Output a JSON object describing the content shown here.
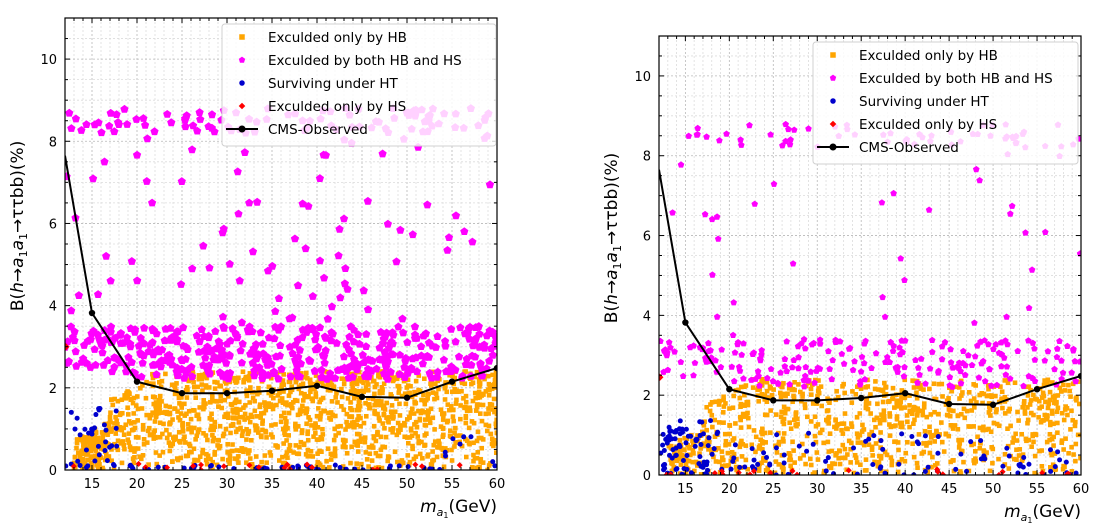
{
  "chart_data": [
    {
      "type": "scatter",
      "title": "",
      "xlabel": "m_{a_1}(GeV)",
      "ylabel": "B(h→a_1a_1→ττbb)(%)",
      "xlim": [
        12,
        60
      ],
      "ylim": [
        0,
        11
      ],
      "x_ticks": [
        15,
        20,
        25,
        30,
        35,
        40,
        45,
        50,
        55,
        60
      ],
      "y_ticks": [
        0,
        2,
        4,
        6,
        8,
        10
      ],
      "grid": true,
      "legend_position": "top-right",
      "series": [
        {
          "name": "Exculded only by HB",
          "marker": "square",
          "color": "#FFA500",
          "band_y": [
            0,
            2.4
          ],
          "approx_points": 1400
        },
        {
          "name": "Exculded by both HB and HS",
          "marker": "pentagon",
          "color": "#FF00FF",
          "band_y": [
            2.2,
            3.5
          ],
          "approx_points": 600
        },
        {
          "name": "Surviving under HT",
          "marker": "circle",
          "color": "#0000CD",
          "band_y": [
            0,
            1.5
          ],
          "approx_points": 90
        },
        {
          "name": "Exculded only by HS",
          "marker": "diamond",
          "color": "#FF0000",
          "band_y": [
            0,
            0.3
          ],
          "approx_points": 20
        },
        {
          "name": "CMS-Observed",
          "marker": "line-dot",
          "color": "#000000",
          "x": [
            12,
            15,
            20,
            25,
            30,
            35,
            40,
            45,
            50,
            55,
            60
          ],
          "y": [
            7.65,
            3.82,
            2.15,
            1.87,
            1.87,
            1.93,
            2.05,
            1.78,
            1.76,
            2.15,
            2.48
          ]
        }
      ]
    },
    {
      "type": "scatter",
      "title": "",
      "xlabel": "m_{a_1}(GeV)",
      "ylabel": "B(h→a_1a_1→ττbb)(%)",
      "xlim": [
        12,
        60
      ],
      "ylim": [
        0,
        11
      ],
      "x_ticks": [
        15,
        20,
        25,
        30,
        35,
        40,
        45,
        50,
        55,
        60
      ],
      "y_ticks": [
        0,
        2,
        4,
        6,
        8,
        10
      ],
      "grid": true,
      "legend_position": "top-right",
      "series": [
        {
          "name": "Exculded only by HB",
          "marker": "square",
          "color": "#FFA500",
          "band_y": [
            0,
            2.4
          ],
          "approx_points": 900
        },
        {
          "name": "Exculded by both HB and HS",
          "marker": "pentagon",
          "color": "#FF00FF",
          "band_y": [
            2.2,
            3.4
          ],
          "approx_points": 300
        },
        {
          "name": "Surviving under HT",
          "marker": "circle",
          "color": "#0000CD",
          "band_y": [
            0,
            1.2
          ],
          "approx_points": 160
        },
        {
          "name": "Exculded only by HS",
          "marker": "diamond",
          "color": "#FF0000",
          "band_y": [
            0,
            0.3
          ],
          "approx_points": 20
        },
        {
          "name": "CMS-Observed",
          "marker": "line-dot",
          "color": "#000000",
          "x": [
            12,
            15,
            20,
            25,
            30,
            35,
            40,
            45,
            50,
            55,
            60
          ],
          "y": [
            7.65,
            3.82,
            2.15,
            1.87,
            1.87,
            1.93,
            2.05,
            1.78,
            1.76,
            2.15,
            2.48
          ]
        }
      ]
    }
  ]
}
